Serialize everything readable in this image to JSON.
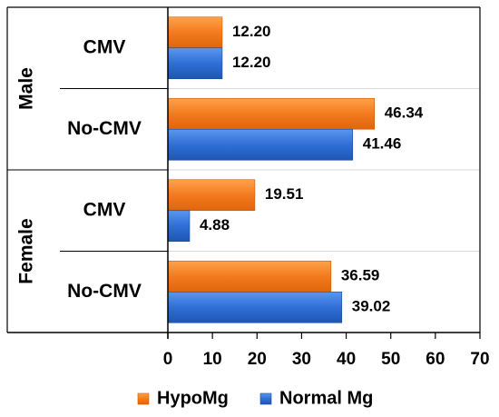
{
  "chart_data": {
    "type": "bar",
    "orientation": "horizontal",
    "groups": [
      {
        "label": "Male",
        "categories": [
          {
            "label": "CMV",
            "values": {
              "HypoMg": 12.2,
              "Normal Mg": 12.2
            },
            "data_labels": {
              "HypoMg": "12.20",
              "Normal Mg": "12.20"
            }
          },
          {
            "label": "No-CMV",
            "values": {
              "HypoMg": 46.34,
              "Normal Mg": 41.46
            },
            "data_labels": {
              "HypoMg": "46.34",
              "Normal Mg": "41.46"
            }
          }
        ]
      },
      {
        "label": "Female",
        "categories": [
          {
            "label": "CMV",
            "values": {
              "HypoMg": 19.51,
              "Normal Mg": 4.88
            },
            "data_labels": {
              "HypoMg": "19.51",
              "Normal Mg": "4.88"
            }
          },
          {
            "label": "No-CMV",
            "values": {
              "HypoMg": 36.59,
              "Normal Mg": 39.02
            },
            "data_labels": {
              "HypoMg": "36.59",
              "Normal Mg": "39.02"
            }
          }
        ]
      }
    ],
    "series": [
      {
        "name": "HypoMg",
        "color": "#f47a20"
      },
      {
        "name": "Normal Mg",
        "color": "#2f6fd6"
      }
    ],
    "xlim": [
      0,
      70
    ],
    "xticks": [
      0,
      10,
      20,
      30,
      40,
      50,
      60,
      70
    ],
    "grid": false,
    "legend_position": "bottom"
  }
}
